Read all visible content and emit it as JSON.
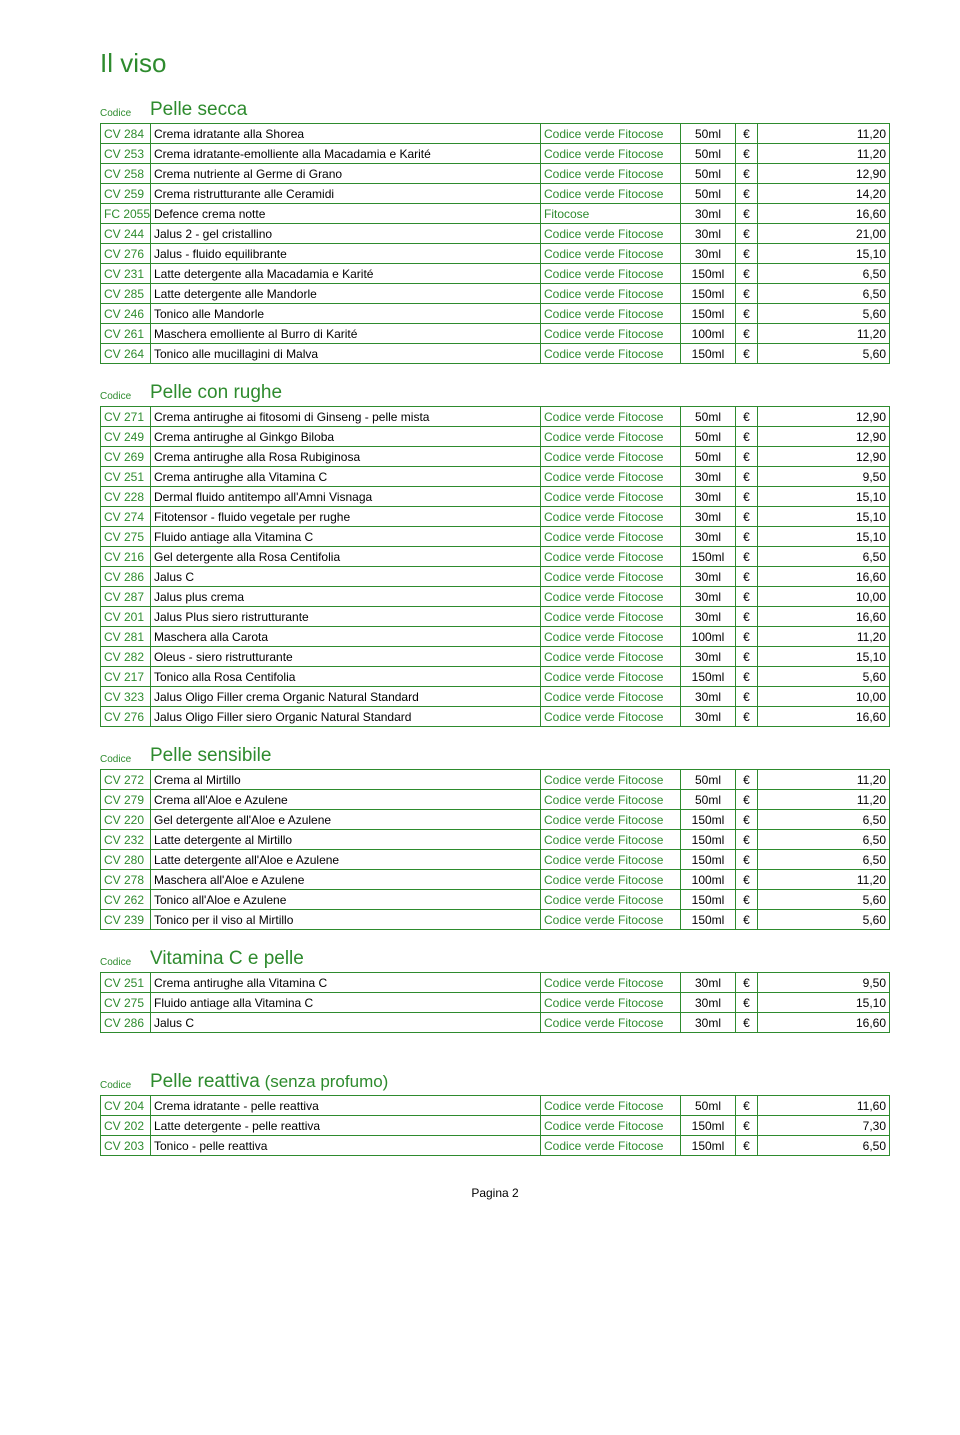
{
  "page_title": "Il viso",
  "codice_label": "Codice",
  "currency": "€",
  "footer": "Pagina 2",
  "brand_default": "Codice verde Fitocose",
  "sections": [
    {
      "title": "Pelle secca",
      "rows": [
        {
          "code": "CV 284",
          "name": "Crema idratante alla Shorea",
          "brand": "Codice verde Fitocose",
          "size": "50ml",
          "price": "11,20"
        },
        {
          "code": "CV 253",
          "name": "Crema idratante-emolliente alla Macadamia e Karité",
          "brand": "Codice verde Fitocose",
          "size": "50ml",
          "price": "11,20"
        },
        {
          "code": "CV 258",
          "name": "Crema nutriente al Germe di Grano",
          "brand": "Codice verde Fitocose",
          "size": "50ml",
          "price": "12,90"
        },
        {
          "code": "CV 259",
          "name": "Crema ristrutturante alle Ceramidi",
          "brand": "Codice verde Fitocose",
          "size": "50ml",
          "price": "14,20"
        },
        {
          "code": "FC 2055",
          "name": "Defence crema notte",
          "brand": "Fitocose",
          "size": "30ml",
          "price": "16,60"
        },
        {
          "code": "CV 244",
          "name": "Jalus 2 - gel cristallino",
          "brand": "Codice verde Fitocose",
          "size": "30ml",
          "price": "21,00"
        },
        {
          "code": "CV 276",
          "name": "Jalus - fluido equilibrante",
          "brand": "Codice verde Fitocose",
          "size": "30ml",
          "price": "15,10"
        },
        {
          "code": "CV 231",
          "name": "Latte detergente alla Macadamia e Karité",
          "brand": "Codice verde Fitocose",
          "size": "150ml",
          "price": "6,50"
        },
        {
          "code": "CV 285",
          "name": "Latte detergente alle Mandorle",
          "brand": "Codice verde Fitocose",
          "size": "150ml",
          "price": "6,50"
        },
        {
          "code": "CV 246",
          "name": "Tonico alle Mandorle",
          "brand": "Codice verde Fitocose",
          "size": "150ml",
          "price": "5,60"
        },
        {
          "code": "CV 261",
          "name": "Maschera emolliente al Burro di Karité",
          "brand": "Codice verde Fitocose",
          "size": "100ml",
          "price": "11,20"
        },
        {
          "code": "CV 264",
          "name": "Tonico alle mucillagini di Malva",
          "brand": "Codice verde Fitocose",
          "size": "150ml",
          "price": "5,60"
        }
      ]
    },
    {
      "title": "Pelle con rughe",
      "rows": [
        {
          "code": "CV 271",
          "name": "Crema antirughe ai fitosomi di Ginseng - pelle mista",
          "brand": "Codice verde Fitocose",
          "size": "50ml",
          "price": "12,90"
        },
        {
          "code": "CV 249",
          "name": "Crema antirughe al Ginkgo Biloba",
          "brand": "Codice verde Fitocose",
          "size": "50ml",
          "price": "12,90"
        },
        {
          "code": "CV 269",
          "name": "Crema antirughe alla Rosa Rubiginosa",
          "brand": "Codice verde Fitocose",
          "size": "50ml",
          "price": "12,90"
        },
        {
          "code": "CV 251",
          "name": "Crema antirughe alla Vitamina C",
          "brand": "Codice verde Fitocose",
          "size": "30ml",
          "price": "9,50"
        },
        {
          "code": "CV 228",
          "name": "Dermal fluido antitempo all'Amni Visnaga",
          "brand": "Codice verde Fitocose",
          "size": "30ml",
          "price": "15,10"
        },
        {
          "code": "CV 274",
          "name": "Fitotensor - fluido vegetale per rughe",
          "brand": "Codice verde Fitocose",
          "size": "30ml",
          "price": "15,10"
        },
        {
          "code": "CV 275",
          "name": "Fluido antiage alla Vitamina C",
          "brand": "Codice verde Fitocose",
          "size": "30ml",
          "price": "15,10"
        },
        {
          "code": "CV 216",
          "name": "Gel detergente alla Rosa Centifolia",
          "brand": "Codice verde Fitocose",
          "size": "150ml",
          "price": "6,50"
        },
        {
          "code": "CV 286",
          "name": "Jalus C",
          "brand": "Codice verde Fitocose",
          "size": "30ml",
          "price": "16,60"
        },
        {
          "code": "CV 287",
          "name": "Jalus plus crema",
          "brand": "Codice verde Fitocose",
          "size": "30ml",
          "price": "10,00"
        },
        {
          "code": "CV 201",
          "name": "Jalus Plus siero ristrutturante",
          "brand": "Codice verde Fitocose",
          "size": "30ml",
          "price": "16,60"
        },
        {
          "code": "CV 281",
          "name": "Maschera alla Carota",
          "brand": "Codice verde Fitocose",
          "size": "100ml",
          "price": "11,20"
        },
        {
          "code": "CV 282",
          "name": "Oleus - siero ristrutturante",
          "brand": "Codice verde Fitocose",
          "size": "30ml",
          "price": "15,10"
        },
        {
          "code": "CV 217",
          "name": "Tonico alla Rosa Centifolia",
          "brand": "Codice verde Fitocose",
          "size": "150ml",
          "price": "5,60"
        },
        {
          "code": "CV 323",
          "name": "Jalus Oligo Filler crema Organic Natural Standard",
          "brand": "Codice verde Fitocose",
          "size": "30ml",
          "price": "10,00"
        },
        {
          "code": "CV 276",
          "name": "Jalus Oligo Filler siero Organic Natural Standard",
          "brand": "Codice verde Fitocose",
          "size": "30ml",
          "price": "16,60"
        }
      ]
    },
    {
      "title": "Pelle sensibile",
      "rows": [
        {
          "code": "CV 272",
          "name": "Crema al Mirtillo",
          "brand": "Codice verde Fitocose",
          "size": "50ml",
          "price": "11,20"
        },
        {
          "code": "CV 279",
          "name": "Crema all'Aloe e Azulene",
          "brand": "Codice verde Fitocose",
          "size": "50ml",
          "price": "11,20"
        },
        {
          "code": "CV 220",
          "name": "Gel detergente all'Aloe e Azulene",
          "brand": "Codice verde Fitocose",
          "size": "150ml",
          "price": "6,50"
        },
        {
          "code": "CV 232",
          "name": "Latte detergente al Mirtillo",
          "brand": "Codice verde Fitocose",
          "size": "150ml",
          "price": "6,50"
        },
        {
          "code": "CV 280",
          "name": "Latte detergente all'Aloe e Azulene",
          "brand": "Codice verde Fitocose",
          "size": "150ml",
          "price": "6,50"
        },
        {
          "code": "CV 278",
          "name": "Maschera all'Aloe e Azulene",
          "brand": "Codice verde Fitocose",
          "size": "100ml",
          "price": "11,20"
        },
        {
          "code": "CV 262",
          "name": "Tonico all'Aloe e Azulene",
          "brand": "Codice verde Fitocose",
          "size": "150ml",
          "price": "5,60"
        },
        {
          "code": "CV 239",
          "name": "Tonico per il viso al Mirtillo",
          "brand": "Codice verde Fitocose",
          "size": "150ml",
          "price": "5,60"
        }
      ]
    },
    {
      "title": "Vitamina C e pelle",
      "rows": [
        {
          "code": "CV 251",
          "name": "Crema antirughe alla Vitamina C",
          "brand": "Codice verde Fitocose",
          "size": "30ml",
          "price": "9,50"
        },
        {
          "code": "CV 275",
          "name": "Fluido antiage alla Vitamina C",
          "brand": "Codice verde Fitocose",
          "size": "30ml",
          "price": "15,10"
        },
        {
          "code": "CV 286",
          "name": "Jalus C",
          "brand": "Codice verde Fitocose",
          "size": "30ml",
          "price": "16,60"
        }
      ]
    },
    {
      "title": "Pelle reattiva",
      "title_suffix": " (senza profumo)",
      "extra_gap": true,
      "rows": [
        {
          "code": "CV 204",
          "name": "Crema idratante - pelle reattiva",
          "brand": "Codice verde Fitocose",
          "size": "50ml",
          "price": "11,60"
        },
        {
          "code": "CV 202",
          "name": "Latte detergente - pelle reattiva",
          "brand": "Codice verde Fitocose",
          "size": "150ml",
          "price": "7,30"
        },
        {
          "code": "CV 203",
          "name": "Tonico - pelle reattiva",
          "brand": "Codice verde Fitocose",
          "size": "150ml",
          "price": "6,50"
        }
      ]
    }
  ]
}
